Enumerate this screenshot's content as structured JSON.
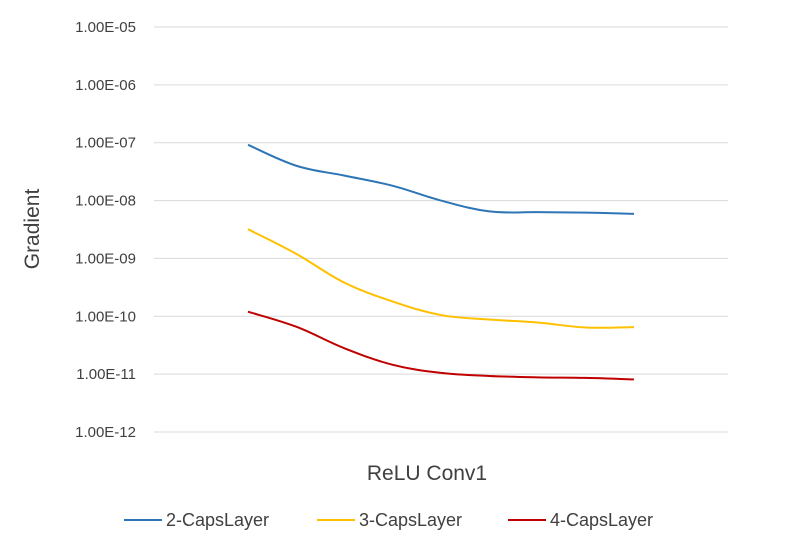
{
  "chart_data": {
    "type": "line",
    "title": "",
    "xlabel": "ReLU Conv1",
    "ylabel": "Gradient",
    "yscale": "log",
    "ylim": [
      1e-12,
      1e-05
    ],
    "yticks": [
      "1.00E-05",
      "1.00E-06",
      "1.00E-07",
      "1.00E-08",
      "1.00E-09",
      "1.00E-10",
      "1.00E-11",
      "1.00E-12"
    ],
    "grid": true,
    "legend": "bottom",
    "series": [
      {
        "name": "2-CapsLayer",
        "color": "#2e75b6",
        "x": [
          1,
          2,
          3,
          4,
          5,
          6,
          7,
          8,
          9
        ],
        "values": [
          9.2e-08,
          4e-08,
          2.7e-08,
          1.8e-08,
          1e-08,
          6.5e-09,
          6.3e-09,
          6.2e-09,
          5.9e-09
        ]
      },
      {
        "name": "3-CapsLayer",
        "color": "#ffc000",
        "x": [
          1,
          2,
          3,
          4,
          5,
          6,
          7,
          8,
          9
        ],
        "values": [
          3.2e-09,
          1.2e-09,
          3.8e-10,
          1.8e-10,
          1.05e-10,
          8.8e-11,
          7.8e-11,
          6.4e-11,
          6.5e-11
        ]
      },
      {
        "name": "4-CapsLayer",
        "color": "#c00000",
        "x": [
          1,
          2,
          3,
          4,
          5,
          6,
          7,
          8,
          9
        ],
        "values": [
          1.2e-10,
          6.6e-11,
          2.8e-11,
          1.45e-11,
          1.05e-11,
          9.3e-12,
          8.8e-12,
          8.6e-12,
          8.1e-12
        ]
      }
    ]
  }
}
